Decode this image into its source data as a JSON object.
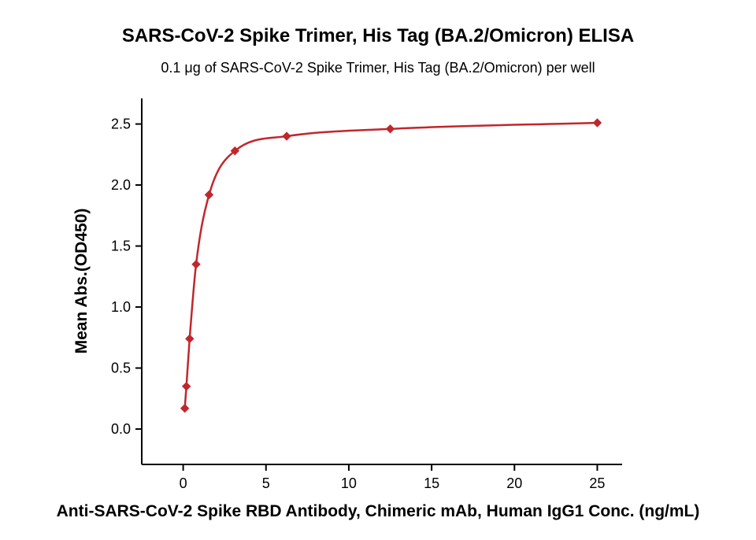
{
  "chart_data": {
    "type": "scatter",
    "title": "SARS-CoV-2 Spike Trimer, His Tag (BA.2/Omicron) ELISA",
    "subtitle": "0.1 μg of SARS-CoV-2 Spike Trimer, His Tag (BA.2/Omicron) per well",
    "xlabel": "Anti-SARS-CoV-2 Spike RBD Antibody, Chimeric mAb, Human IgG1 Conc. (ng/mL)",
    "ylabel": "Mean Abs.(OD450)",
    "series": [
      {
        "name": "Anti-SARS-CoV-2 Spike RBD Antibody, Chimeric mAb, Human IgG1",
        "x": [
          0.098,
          0.195,
          0.391,
          0.781,
          1.563,
          3.125,
          6.25,
          12.5,
          25
        ],
        "y": [
          0.17,
          0.35,
          0.74,
          1.35,
          1.92,
          2.28,
          2.4,
          2.46,
          2.51
        ],
        "marker": "diamond",
        "line": "smooth-fit",
        "color": "#c0272d"
      }
    ],
    "xlim": [
      -2.5,
      26.5
    ],
    "ylim": [
      -0.29,
      2.71
    ],
    "xticks": [
      0,
      5,
      10,
      15,
      20,
      25
    ],
    "xtick_labels": [
      "0",
      "5",
      "10",
      "15",
      "20",
      "25"
    ],
    "yticks": [
      0.0,
      0.5,
      1.0,
      1.5,
      2.0,
      2.5
    ],
    "ytick_labels": [
      "0.0",
      "0.5",
      "1.0",
      "1.5",
      "2.0",
      "2.5"
    ],
    "grid": false,
    "legend": "none",
    "axis_color": "#000000",
    "background_color": "#ffffff"
  }
}
